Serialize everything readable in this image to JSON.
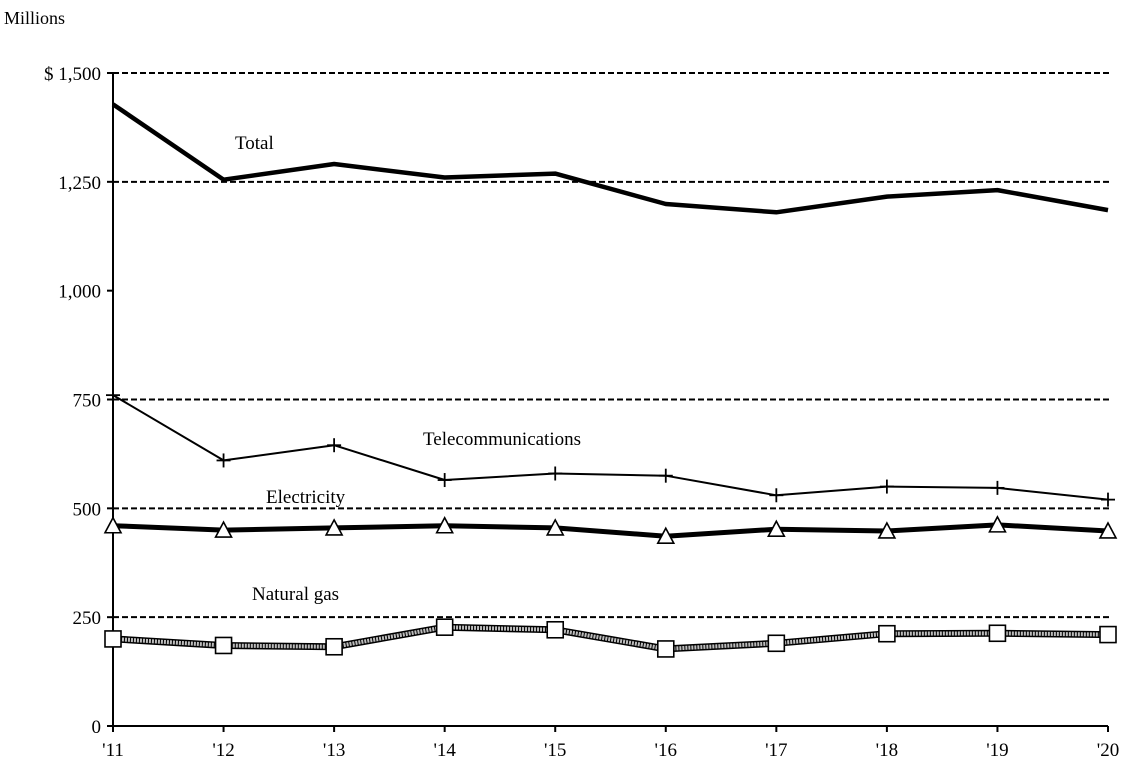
{
  "chart_data": {
    "type": "line",
    "unit_label": "Millions",
    "x": [
      "'11",
      "'12",
      "'13",
      "'14",
      "'15",
      "'16",
      "'17",
      "'18",
      "'19",
      "'20"
    ],
    "y_ticks": [
      {
        "value": 0,
        "label": "0"
      },
      {
        "value": 250,
        "label": "250"
      },
      {
        "value": 500,
        "label": "500"
      },
      {
        "value": 750,
        "label": "750"
      },
      {
        "value": 1000,
        "label": "1,000"
      },
      {
        "value": 1250,
        "label": "1,250"
      },
      {
        "value": 1500,
        "label": "$ 1,500"
      }
    ],
    "ylim": [
      0,
      1500
    ],
    "grid": "dashed horizontal at 250, 500, 750, 1,250 and 1,500",
    "series": [
      {
        "name": "Total",
        "marker": "none",
        "values": [
          1428,
          1255,
          1291,
          1260,
          1269,
          1199,
          1180,
          1216,
          1231,
          1185
        ]
      },
      {
        "name": "Telecommunications",
        "marker": "plus",
        "values": [
          760,
          610,
          645,
          565,
          580,
          575,
          530,
          550,
          547,
          520
        ]
      },
      {
        "name": "Electricity",
        "marker": "triangle",
        "values": [
          460,
          450,
          455,
          460,
          455,
          436,
          452,
          448,
          462,
          448
        ]
      },
      {
        "name": "Natural gas",
        "marker": "square",
        "values": [
          200,
          185,
          182,
          227,
          221,
          177,
          190,
          212,
          213,
          210
        ]
      }
    ]
  }
}
